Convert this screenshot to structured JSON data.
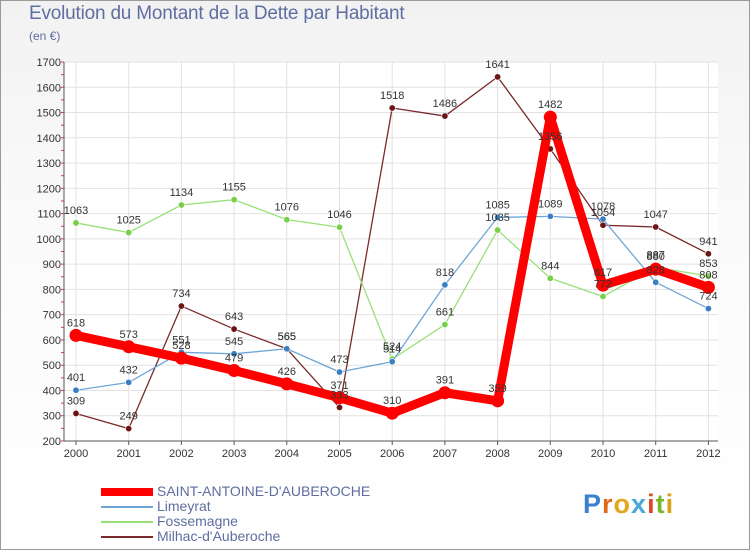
{
  "header": {
    "title": "Evolution du Montant de la Dette par Habitant",
    "unit": "(en €)"
  },
  "logo": {
    "letters": [
      "P",
      "r",
      "o",
      "x",
      "i",
      "t",
      "i"
    ]
  },
  "chart_data": {
    "type": "line",
    "title": "Evolution du Montant de la Dette par Habitant",
    "subtitle": "(en €)",
    "xlabel": "",
    "ylabel": "",
    "x": [
      "2000",
      "2001",
      "2002",
      "2003",
      "2004",
      "2005",
      "2006",
      "2007",
      "2008",
      "2009",
      "2010",
      "2011",
      "2012"
    ],
    "ylim": [
      200,
      1700
    ],
    "yticks": [
      200,
      300,
      400,
      500,
      600,
      700,
      800,
      900,
      1000,
      1100,
      1200,
      1300,
      1400,
      1500,
      1600,
      1700
    ],
    "grid": true,
    "legend": "bottom-left",
    "series": [
      {
        "name": "SAINT-ANTOINE-D'AUBEROCHE",
        "color": "#ff0000",
        "marker": "#ff0000",
        "values": [
          618,
          573,
          528,
          479,
          426,
          371,
          310,
          391,
          359,
          1482,
          817,
          880,
          808
        ]
      },
      {
        "name": "Limeyrat",
        "color": "#6ea6d8",
        "marker": "#3a7fc4",
        "values": [
          401,
          432,
          551,
          545,
          565,
          473,
          514,
          818,
          1085,
          1089,
          1078,
          828,
          724
        ]
      },
      {
        "name": "Fossemagne",
        "color": "#99e07a",
        "marker": "#77d04a",
        "values": [
          1063,
          1025,
          1134,
          1155,
          1076,
          1046,
          524,
          661,
          1035,
          844,
          772,
          887,
          853
        ]
      },
      {
        "name": "Milhac-d'Auberoche",
        "color": "#7a2a2a",
        "marker": "#6b1515",
        "values": [
          309,
          249,
          734,
          643,
          565,
          333,
          1518,
          1486,
          1641,
          1356,
          1054,
          1047,
          941
        ]
      }
    ]
  }
}
